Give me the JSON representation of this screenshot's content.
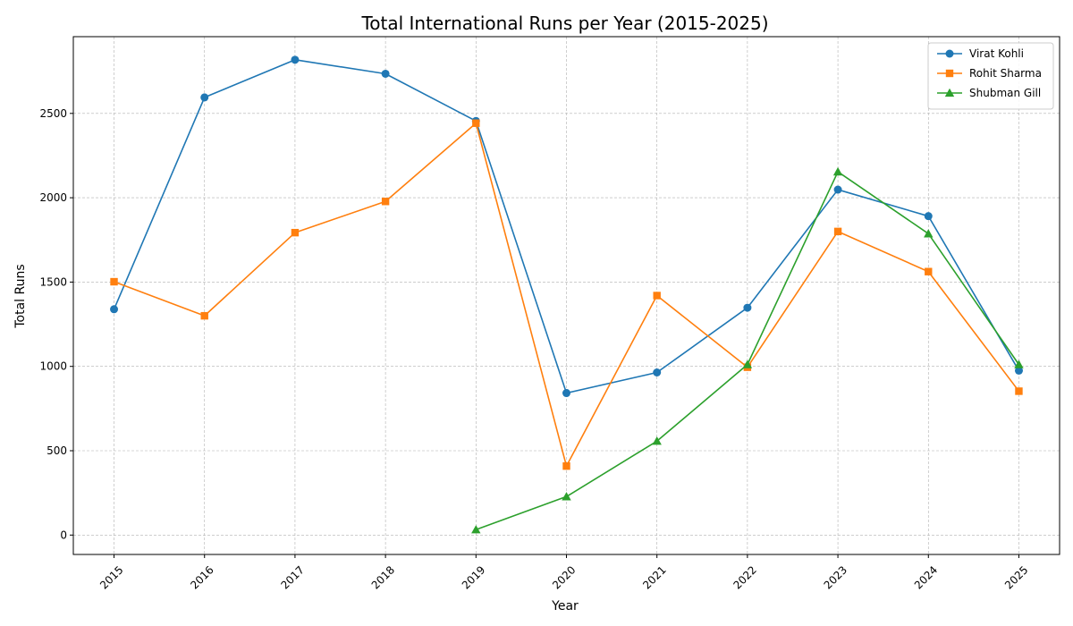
{
  "chart_data": {
    "type": "line",
    "title": "Total International Runs per Year (2015-2025)",
    "xlabel": "Year",
    "ylabel": "Total Runs",
    "x": [
      2015,
      2016,
      2017,
      2018,
      2019,
      2020,
      2021,
      2022,
      2023,
      2024,
      2025
    ],
    "x_tick_labels": [
      "2015",
      "2016",
      "2017",
      "2018",
      "2019",
      "2020",
      "2021",
      "2022",
      "2023",
      "2024",
      "2025"
    ],
    "y_ticks": [
      0,
      500,
      1000,
      1500,
      2000,
      2500
    ],
    "y_tick_labels": [
      "0",
      "500",
      "1000",
      "1500",
      "2000",
      "2500"
    ],
    "ylim": [
      -115,
      2955
    ],
    "grid": true,
    "legend_position": "top-right",
    "series": [
      {
        "name": "Virat Kohli",
        "color": "#1f77b4",
        "marker": "circle",
        "x": [
          2015,
          2016,
          2017,
          2018,
          2019,
          2020,
          2021,
          2022,
          2023,
          2024,
          2025
        ],
        "values": [
          1339,
          2595,
          2818,
          2735,
          2455,
          842,
          964,
          1348,
          2048,
          1891,
          975
        ]
      },
      {
        "name": "Rohit Sharma",
        "color": "#ff7f0e",
        "marker": "square",
        "x": [
          2015,
          2016,
          2017,
          2018,
          2019,
          2020,
          2021,
          2022,
          2023,
          2024,
          2025
        ],
        "values": [
          1502,
          1300,
          1793,
          1978,
          2442,
          409,
          1420,
          995,
          1800,
          1562,
          853
        ]
      },
      {
        "name": "Shubman Gill",
        "color": "#2ca02c",
        "marker": "triangle",
        "x": [
          2019,
          2020,
          2021,
          2022,
          2023,
          2024,
          2025
        ],
        "values": [
          32,
          228,
          557,
          1011,
          2154,
          1787,
          1011
        ]
      }
    ]
  }
}
